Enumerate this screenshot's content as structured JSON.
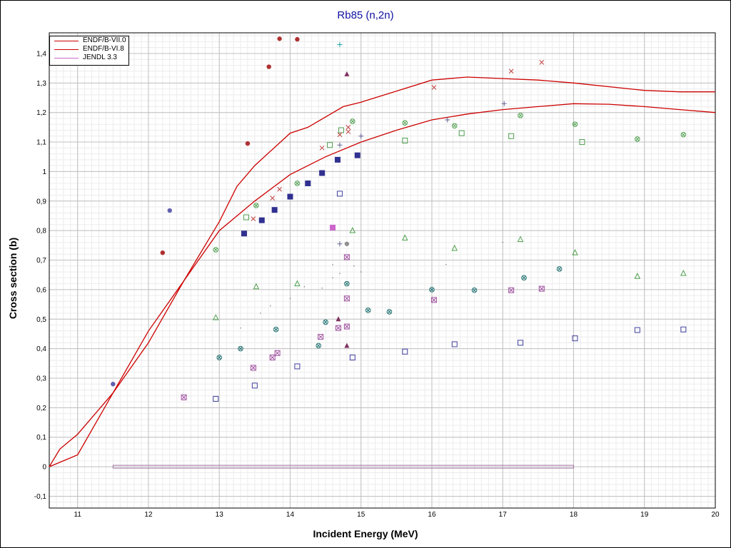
{
  "chart_data": {
    "type": "scatter",
    "title": "Rb85 (n,2n)",
    "xlabel": "Incident Energy (MeV)",
    "ylabel": "Cross section (b)",
    "xlim": [
      10.6,
      20
    ],
    "ylim": [
      -0.14,
      1.47
    ],
    "x_ticks": [
      11,
      12,
      13,
      14,
      15,
      16,
      17,
      18,
      19,
      20
    ],
    "x_tick_labels": [
      "11",
      "12",
      "13",
      "14",
      "15",
      "16",
      "17",
      "18",
      "19",
      "20"
    ],
    "y_ticks": [
      -0.1,
      0,
      0.1,
      0.2,
      0.3,
      0.4,
      0.5,
      0.6,
      0.7,
      0.8,
      0.9,
      1,
      1.1,
      1.2,
      1.3,
      1.4
    ],
    "y_tick_labels": [
      "-0,1",
      "0",
      "0,1",
      "0,2",
      "0,3",
      "0,4",
      "0,5",
      "0,6",
      "0,7",
      "0,8",
      "0,9",
      "1",
      "1,1",
      "1,2",
      "1,3",
      "1,4"
    ],
    "grid": true,
    "minor_grid": true,
    "legend_position": "top-left",
    "series": [
      {
        "name": "ENDF/B-VII.0",
        "kind": "line",
        "color": "#cc0000",
        "points": [
          [
            10.6,
            0
          ],
          [
            10.75,
            0.06
          ],
          [
            11,
            0.11
          ],
          [
            11.5,
            0.25
          ],
          [
            12,
            0.46
          ],
          [
            12.5,
            0.63
          ],
          [
            13,
            0.8
          ],
          [
            13.5,
            0.9
          ],
          [
            14,
            0.99
          ],
          [
            14.5,
            1.05
          ],
          [
            15,
            1.1
          ],
          [
            15.5,
            1.14
          ],
          [
            16,
            1.175
          ],
          [
            16.5,
            1.195
          ],
          [
            17,
            1.21
          ],
          [
            17.5,
            1.22
          ],
          [
            18,
            1.23
          ],
          [
            18.5,
            1.228
          ],
          [
            19,
            1.22
          ],
          [
            19.5,
            1.21
          ],
          [
            20,
            1.2
          ]
        ]
      },
      {
        "name": "ENDF/B-VI.8",
        "kind": "line",
        "color": "#cc0000",
        "points": [
          [
            10.6,
            0
          ],
          [
            11,
            0.04
          ],
          [
            11.5,
            0.25
          ],
          [
            12,
            0.42
          ],
          [
            12.5,
            0.63
          ],
          [
            13,
            0.83
          ],
          [
            13.25,
            0.95
          ],
          [
            13.5,
            1.02
          ],
          [
            14,
            1.13
          ],
          [
            14.25,
            1.15
          ],
          [
            14.75,
            1.22
          ],
          [
            15,
            1.235
          ],
          [
            16,
            1.31
          ],
          [
            16.5,
            1.32
          ],
          [
            17,
            1.315
          ],
          [
            17.5,
            1.31
          ],
          [
            18,
            1.3
          ],
          [
            19,
            1.275
          ],
          [
            19.5,
            1.27
          ],
          [
            20,
            1.27
          ]
        ]
      },
      {
        "name": "JENDL 3.3",
        "kind": "line",
        "color": "#cc66cc",
        "points": [
          [
            11.5,
            0
          ],
          [
            18,
            0
          ]
        ]
      },
      {
        "name": "",
        "marker": "filled-circle",
        "color": "#b03030",
        "points": [
          [
            12.2,
            0.725
          ],
          [
            13.4,
            1.095
          ],
          [
            13.7,
            1.355
          ],
          [
            13.85,
            1.45
          ],
          [
            14.1,
            1.448
          ]
        ]
      },
      {
        "name": "",
        "marker": "filled-circle",
        "color": "#6060b0",
        "points": [
          [
            11.5,
            0.28
          ],
          [
            12.3,
            0.868
          ]
        ]
      },
      {
        "name": "",
        "marker": "filled-square",
        "color": "#303090",
        "points": [
          [
            13.35,
            0.79
          ],
          [
            13.6,
            0.835
          ],
          [
            13.78,
            0.87
          ],
          [
            14,
            0.915
          ],
          [
            14.25,
            0.96
          ],
          [
            14.45,
            0.995
          ],
          [
            14.67,
            1.04
          ],
          [
            14.95,
            1.055
          ]
        ]
      },
      {
        "name": "",
        "marker": "filled-square",
        "color": "#cc66cc",
        "points": [
          [
            14.6,
            0.81
          ]
        ]
      },
      {
        "name": "",
        "marker": "open-square",
        "color": "#4040a0",
        "points": [
          [
            12.95,
            0.23
          ],
          [
            13.5,
            0.275
          ],
          [
            14.1,
            0.34
          ],
          [
            14.7,
            0.925
          ],
          [
            14.88,
            0.37
          ],
          [
            15.62,
            0.39
          ],
          [
            16.32,
            0.415
          ],
          [
            17.25,
            0.42
          ],
          [
            18.02,
            0.435
          ],
          [
            18.9,
            0.463
          ],
          [
            19.55,
            0.465
          ]
        ]
      },
      {
        "name": "",
        "marker": "open-square",
        "color": "#50a050",
        "points": [
          [
            13.38,
            0.845
          ],
          [
            14.56,
            1.09
          ],
          [
            14.72,
            1.14
          ],
          [
            15.62,
            1.105
          ],
          [
            16.42,
            1.13
          ],
          [
            17.12,
            1.12
          ],
          [
            18.12,
            1.1
          ]
        ]
      },
      {
        "name": "",
        "marker": "open-triangle",
        "color": "#50a050",
        "points": [
          [
            12.95,
            0.505
          ],
          [
            13.52,
            0.61
          ],
          [
            14.1,
            0.62
          ],
          [
            14.88,
            0.8
          ],
          [
            15.62,
            0.775
          ],
          [
            16.32,
            0.74
          ],
          [
            17.25,
            0.77
          ],
          [
            18.02,
            0.725
          ],
          [
            18.9,
            0.645
          ],
          [
            19.55,
            0.655
          ]
        ]
      },
      {
        "name": "",
        "marker": "filled-triangle",
        "color": "#803060",
        "points": [
          [
            14.8,
            1.33
          ],
          [
            14.8,
            0.41
          ],
          [
            14.68,
            0.5
          ]
        ]
      },
      {
        "name": "",
        "marker": "circle-x",
        "color": "#50a050",
        "points": [
          [
            12.95,
            0.735
          ],
          [
            13.52,
            0.885
          ],
          [
            14.1,
            0.96
          ],
          [
            14.88,
            1.17
          ],
          [
            15.62,
            1.165
          ],
          [
            16.32,
            1.155
          ],
          [
            17.25,
            1.19
          ],
          [
            18.02,
            1.16
          ],
          [
            18.9,
            1.11
          ],
          [
            19.55,
            1.125
          ]
        ]
      },
      {
        "name": "",
        "marker": "circle-x",
        "color": "#207070",
        "points": [
          [
            13.0,
            0.37
          ],
          [
            13.3,
            0.4
          ],
          [
            13.8,
            0.465
          ],
          [
            14.4,
            0.41
          ],
          [
            14.5,
            0.49
          ],
          [
            14.8,
            0.62
          ],
          [
            15.1,
            0.53
          ],
          [
            15.4,
            0.525
          ],
          [
            16.0,
            0.6
          ],
          [
            16.6,
            0.598
          ],
          [
            17.3,
            0.64
          ],
          [
            17.8,
            0.67
          ]
        ]
      },
      {
        "name": "",
        "marker": "square-x",
        "color": "#a050a0",
        "points": [
          [
            12.5,
            0.235
          ],
          [
            13.48,
            0.335
          ],
          [
            13.75,
            0.37
          ],
          [
            13.82,
            0.385
          ],
          [
            14.43,
            0.44
          ],
          [
            14.68,
            0.47
          ],
          [
            14.8,
            0.475
          ],
          [
            14.8,
            0.57
          ],
          [
            14.8,
            0.71
          ],
          [
            16.03,
            0.565
          ],
          [
            17.12,
            0.598
          ],
          [
            17.55,
            0.603
          ]
        ]
      },
      {
        "name": "",
        "marker": "cross",
        "color": "#c04040",
        "points": [
          [
            13.48,
            0.84
          ],
          [
            13.75,
            0.91
          ],
          [
            13.85,
            0.94
          ],
          [
            14.45,
            1.08
          ],
          [
            14.7,
            1.125
          ],
          [
            14.82,
            1.135
          ],
          [
            14.82,
            1.15
          ],
          [
            16.03,
            1.285
          ],
          [
            17.12,
            1.34
          ],
          [
            17.55,
            1.37
          ]
        ]
      },
      {
        "name": "",
        "marker": "plus",
        "color": "#606090",
        "points": [
          [
            14.7,
            1.09
          ],
          [
            14.7,
            0.755
          ],
          [
            15.0,
            1.12
          ],
          [
            16.22,
            1.175
          ],
          [
            17.02,
            1.23
          ]
        ]
      },
      {
        "name": "",
        "marker": "plus",
        "color": "#20a0a0",
        "points": [
          [
            14.7,
            1.43
          ]
        ]
      },
      {
        "name": "",
        "marker": "filled-circle",
        "color": "#909090",
        "points": [
          [
            14.8,
            0.755
          ]
        ]
      },
      {
        "name": "",
        "marker": "dot",
        "color": "#606060",
        "points": [
          [
            13.3,
            0.47
          ],
          [
            13.58,
            0.52
          ],
          [
            13.72,
            0.545
          ],
          [
            14.0,
            0.57
          ],
          [
            14.2,
            0.61
          ],
          [
            14.45,
            0.605
          ],
          [
            14.6,
            0.64
          ],
          [
            14.7,
            0.655
          ],
          [
            14.6,
            0.685
          ],
          [
            15.0,
            0.66
          ],
          [
            16.2,
            0.685
          ],
          [
            17.0,
            0.76
          ],
          [
            14.9,
            0.68
          ]
        ]
      }
    ]
  }
}
